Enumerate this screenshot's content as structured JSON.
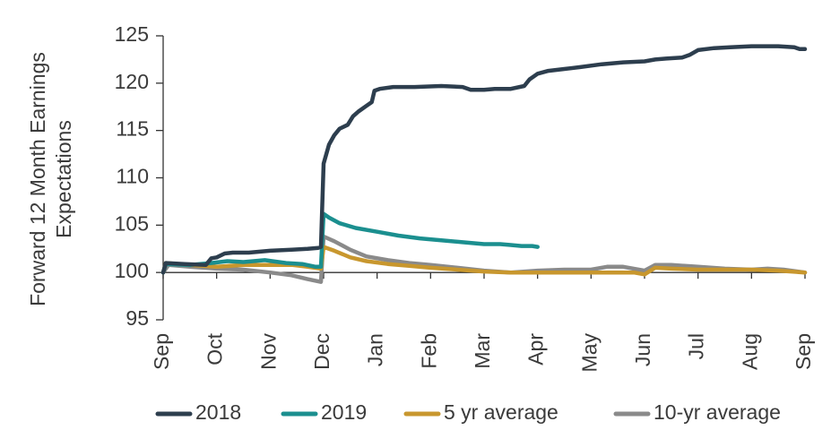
{
  "chart_data": {
    "type": "line",
    "ylabel_lines": [
      "Forward 12 Month Earnings",
      "Expectations"
    ],
    "xlabel": "",
    "ylim": [
      95,
      125
    ],
    "yticks": [
      95,
      100,
      105,
      110,
      115,
      120,
      125
    ],
    "xlim": [
      0,
      12
    ],
    "xticks": [
      {
        "x": 0,
        "label": "Sep"
      },
      {
        "x": 1,
        "label": "Oct"
      },
      {
        "x": 2,
        "label": "Nov"
      },
      {
        "x": 3,
        "label": "Dec"
      },
      {
        "x": 4,
        "label": "Jan"
      },
      {
        "x": 5,
        "label": "Feb"
      },
      {
        "x": 6,
        "label": "Mar"
      },
      {
        "x": 7,
        "label": "Apr"
      },
      {
        "x": 8,
        "label": "May"
      },
      {
        "x": 9,
        "label": "Jun"
      },
      {
        "x": 10,
        "label": "Jul"
      },
      {
        "x": 11,
        "label": "Aug"
      },
      {
        "x": 12,
        "label": "Sep"
      }
    ],
    "grid": false,
    "legend_position": "bottom",
    "series": [
      {
        "name": "2018",
        "color": "#2d3e4e",
        "points": [
          [
            0,
            100
          ],
          [
            0.05,
            101
          ],
          [
            0.4,
            100.9
          ],
          [
            0.8,
            100.8
          ],
          [
            0.9,
            101.5
          ],
          [
            1.0,
            101.6
          ],
          [
            1.15,
            102.0
          ],
          [
            1.3,
            102.1
          ],
          [
            1.6,
            102.1
          ],
          [
            2.0,
            102.3
          ],
          [
            2.4,
            102.4
          ],
          [
            2.7,
            102.5
          ],
          [
            2.9,
            102.6
          ],
          [
            2.95,
            102.7
          ],
          [
            3.0,
            111.5
          ],
          [
            3.1,
            113.5
          ],
          [
            3.2,
            114.5
          ],
          [
            3.3,
            115.2
          ],
          [
            3.45,
            115.6
          ],
          [
            3.55,
            116.5
          ],
          [
            3.65,
            117.0
          ],
          [
            3.8,
            117.6
          ],
          [
            3.9,
            118.0
          ],
          [
            3.95,
            119.2
          ],
          [
            4.05,
            119.4
          ],
          [
            4.3,
            119.6
          ],
          [
            4.7,
            119.6
          ],
          [
            5.2,
            119.7
          ],
          [
            5.6,
            119.6
          ],
          [
            5.75,
            119.3
          ],
          [
            6.0,
            119.3
          ],
          [
            6.2,
            119.4
          ],
          [
            6.5,
            119.4
          ],
          [
            6.75,
            119.7
          ],
          [
            6.85,
            120.4
          ],
          [
            7.0,
            121.0
          ],
          [
            7.2,
            121.3
          ],
          [
            7.5,
            121.5
          ],
          [
            7.8,
            121.7
          ],
          [
            8.2,
            122.0
          ],
          [
            8.6,
            122.2
          ],
          [
            9.0,
            122.3
          ],
          [
            9.2,
            122.5
          ],
          [
            9.4,
            122.6
          ],
          [
            9.7,
            122.7
          ],
          [
            9.85,
            123.0
          ],
          [
            10.0,
            123.5
          ],
          [
            10.3,
            123.7
          ],
          [
            10.6,
            123.8
          ],
          [
            11.0,
            123.9
          ],
          [
            11.3,
            123.9
          ],
          [
            11.5,
            123.9
          ],
          [
            11.8,
            123.8
          ],
          [
            11.9,
            123.6
          ],
          [
            12.0,
            123.6
          ]
        ]
      },
      {
        "name": "2019",
        "color": "#1b8f8f",
        "points": [
          [
            0,
            100
          ],
          [
            0.05,
            100.9
          ],
          [
            0.5,
            100.8
          ],
          [
            0.9,
            101.0
          ],
          [
            1.2,
            101.2
          ],
          [
            1.5,
            101.1
          ],
          [
            1.9,
            101.3
          ],
          [
            2.3,
            101.0
          ],
          [
            2.6,
            100.9
          ],
          [
            2.85,
            100.6
          ],
          [
            2.95,
            100.6
          ],
          [
            3.0,
            106.2
          ],
          [
            3.1,
            105.8
          ],
          [
            3.3,
            105.2
          ],
          [
            3.6,
            104.7
          ],
          [
            4.0,
            104.3
          ],
          [
            4.4,
            103.9
          ],
          [
            4.8,
            103.6
          ],
          [
            5.2,
            103.4
          ],
          [
            5.6,
            103.2
          ],
          [
            6.0,
            103.0
          ],
          [
            6.3,
            103.0
          ],
          [
            6.5,
            102.9
          ],
          [
            6.7,
            102.8
          ],
          [
            6.9,
            102.8
          ],
          [
            7.0,
            102.7
          ]
        ]
      },
      {
        "name": "5 yr average",
        "color": "#c8972e",
        "points": [
          [
            0,
            100
          ],
          [
            0.05,
            101.0
          ],
          [
            0.5,
            100.8
          ],
          [
            1.0,
            100.6
          ],
          [
            1.5,
            100.8
          ],
          [
            2.0,
            100.8
          ],
          [
            2.4,
            100.8
          ],
          [
            2.7,
            100.6
          ],
          [
            2.95,
            100.4
          ],
          [
            3.0,
            102.7
          ],
          [
            3.2,
            102.3
          ],
          [
            3.5,
            101.6
          ],
          [
            3.8,
            101.2
          ],
          [
            4.2,
            100.9
          ],
          [
            4.6,
            100.7
          ],
          [
            5.0,
            100.5
          ],
          [
            5.5,
            100.3
          ],
          [
            6.0,
            100.1
          ],
          [
            6.5,
            100.0
          ],
          [
            7.0,
            100.0
          ],
          [
            7.5,
            100.0
          ],
          [
            8.0,
            100.0
          ],
          [
            8.5,
            100.0
          ],
          [
            8.8,
            100.0
          ],
          [
            9.0,
            99.8
          ],
          [
            9.2,
            100.5
          ],
          [
            9.5,
            100.4
          ],
          [
            10.0,
            100.3
          ],
          [
            10.5,
            100.3
          ],
          [
            11.0,
            100.3
          ],
          [
            11.5,
            100.2
          ],
          [
            12.0,
            100.0
          ]
        ]
      },
      {
        "name": "10-yr average",
        "color": "#8a8a8a",
        "points": [
          [
            0,
            100
          ],
          [
            0.1,
            100.8
          ],
          [
            0.5,
            100.6
          ],
          [
            1.0,
            100.4
          ],
          [
            1.5,
            100.3
          ],
          [
            2.0,
            100.0
          ],
          [
            2.4,
            99.7
          ],
          [
            2.7,
            99.3
          ],
          [
            2.95,
            99.0
          ],
          [
            3.0,
            103.8
          ],
          [
            3.2,
            103.3
          ],
          [
            3.5,
            102.4
          ],
          [
            3.8,
            101.7
          ],
          [
            4.2,
            101.3
          ],
          [
            4.6,
            101.0
          ],
          [
            5.0,
            100.8
          ],
          [
            5.5,
            100.5
          ],
          [
            6.0,
            100.2
          ],
          [
            6.5,
            100.0
          ],
          [
            7.0,
            100.2
          ],
          [
            7.5,
            100.3
          ],
          [
            8.0,
            100.3
          ],
          [
            8.3,
            100.6
          ],
          [
            8.6,
            100.6
          ],
          [
            9.0,
            100.2
          ],
          [
            9.2,
            100.8
          ],
          [
            9.5,
            100.8
          ],
          [
            10.0,
            100.6
          ],
          [
            10.5,
            100.4
          ],
          [
            11.0,
            100.3
          ],
          [
            11.3,
            100.4
          ],
          [
            11.6,
            100.3
          ],
          [
            12.0,
            100.0
          ]
        ]
      }
    ]
  },
  "legend": [
    {
      "label": "2018",
      "color": "#2d3e4e"
    },
    {
      "label": "2019",
      "color": "#1b8f8f"
    },
    {
      "label": "5 yr average",
      "color": "#c8972e"
    },
    {
      "label": "10-yr average",
      "color": "#8a8a8a"
    }
  ]
}
